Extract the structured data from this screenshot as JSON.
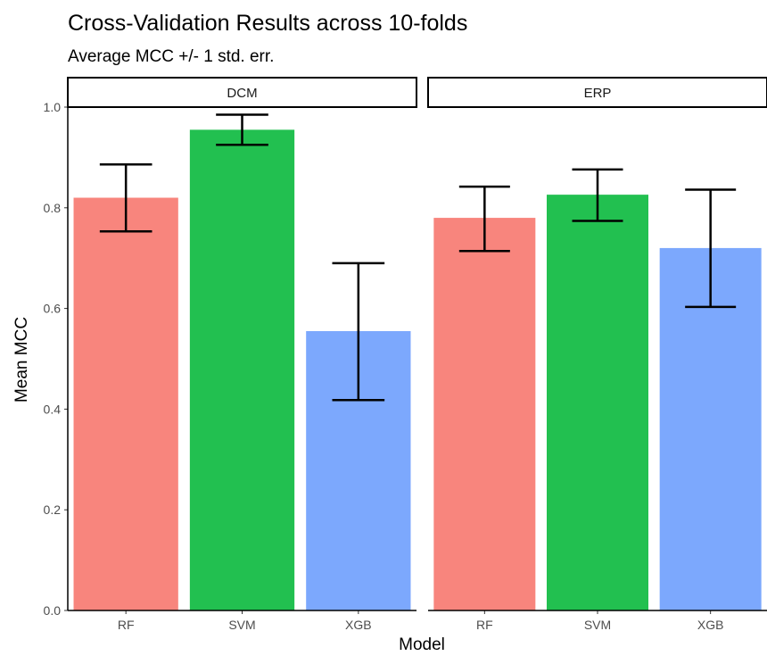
{
  "chart_data": {
    "type": "bar",
    "title": "Cross-Validation Results across 10-folds",
    "subtitle": "Average MCC +/- 1 std. err.",
    "xlabel": "Model",
    "ylabel": "Mean MCC",
    "ylim": [
      0,
      1.05
    ],
    "yticks": [
      0.0,
      0.2,
      0.4,
      0.6,
      0.8,
      1.0
    ],
    "ytick_labels": [
      "0.0",
      "0.2",
      "0.4",
      "0.6",
      "0.8",
      "1.0"
    ],
    "categories": [
      "RF",
      "SVM",
      "XGB"
    ],
    "colors": {
      "RF": "#F8857D",
      "SVM": "#22C050",
      "XGB": "#7CA8FD"
    },
    "grid": false,
    "facets": [
      {
        "label": "DCM",
        "values": [
          0.82,
          0.955,
          0.555
        ],
        "err_low": [
          0.753,
          0.925,
          0.418
        ],
        "err_high": [
          0.886,
          0.985,
          0.69
        ]
      },
      {
        "label": "ERP",
        "values": [
          0.78,
          0.826,
          0.72
        ],
        "err_low": [
          0.714,
          0.774,
          0.603
        ],
        "err_high": [
          0.842,
          0.876,
          0.836
        ]
      }
    ]
  }
}
